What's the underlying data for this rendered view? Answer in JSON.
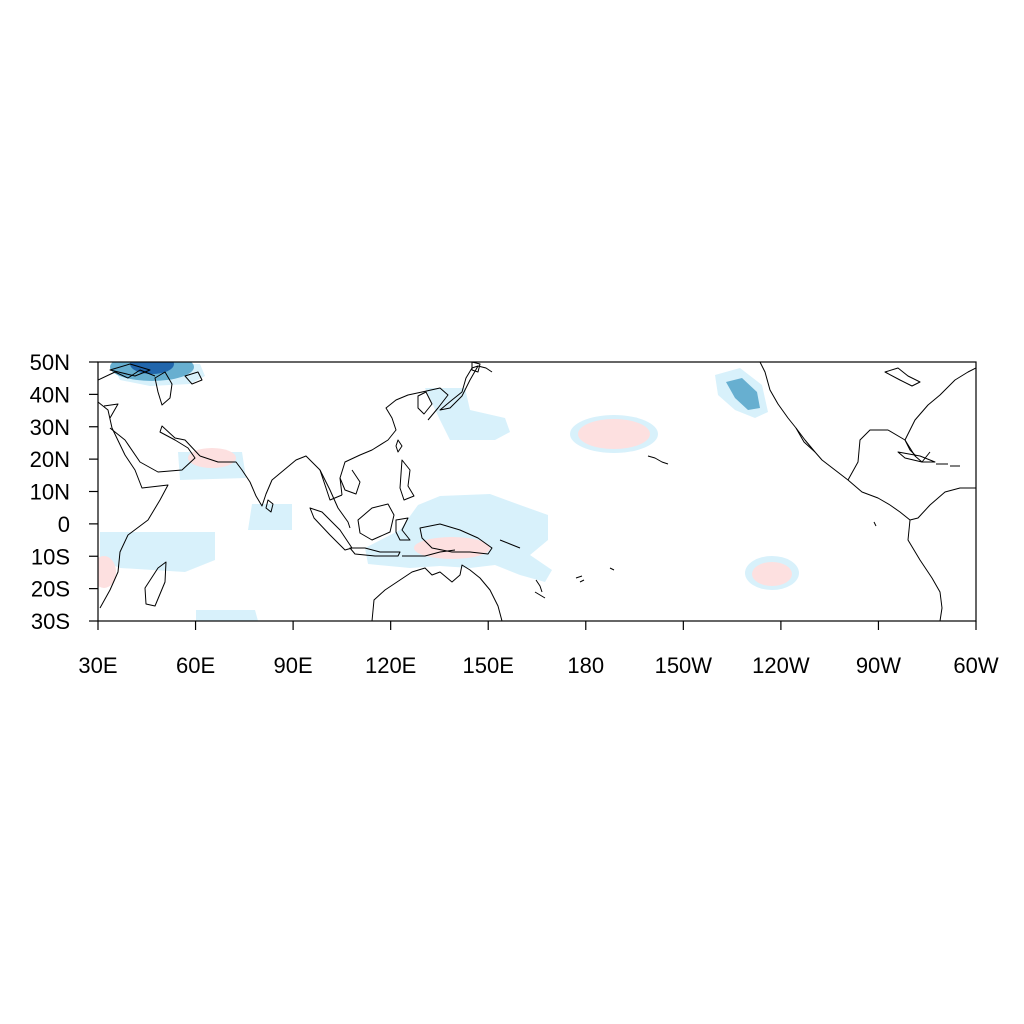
{
  "chart_data": {
    "type": "map",
    "title": "",
    "projection": "cylindrical equidistant",
    "lon_range": [
      30,
      300
    ],
    "lat_range": [
      -30,
      50
    ],
    "x_ticks": [
      {
        "lon": 30,
        "label": "30E"
      },
      {
        "lon": 60,
        "label": "60E"
      },
      {
        "lon": 90,
        "label": "90E"
      },
      {
        "lon": 120,
        "label": "120E"
      },
      {
        "lon": 150,
        "label": "150E"
      },
      {
        "lon": 180,
        "label": "180"
      },
      {
        "lon": 210,
        "label": "150W"
      },
      {
        "lon": 240,
        "label": "120W"
      },
      {
        "lon": 270,
        "label": "90W"
      },
      {
        "lon": 300,
        "label": "60W"
      }
    ],
    "y_ticks": [
      {
        "lat": 50,
        "label": "50N"
      },
      {
        "lat": 40,
        "label": "40N"
      },
      {
        "lat": 30,
        "label": "30N"
      },
      {
        "lat": 20,
        "label": "20N"
      },
      {
        "lat": 10,
        "label": "10N"
      },
      {
        "lat": 0,
        "label": "0"
      },
      {
        "lat": -10,
        "label": "10S"
      },
      {
        "lat": -20,
        "label": "20S"
      },
      {
        "lat": -30,
        "label": "30S"
      }
    ],
    "colors": {
      "strong_negative": "#2166ac",
      "moderate_negative": "#67afd0",
      "weak_negative": "#d8f1fb",
      "weak_positive": "#fde0e0",
      "coastline": "#000000"
    }
  }
}
